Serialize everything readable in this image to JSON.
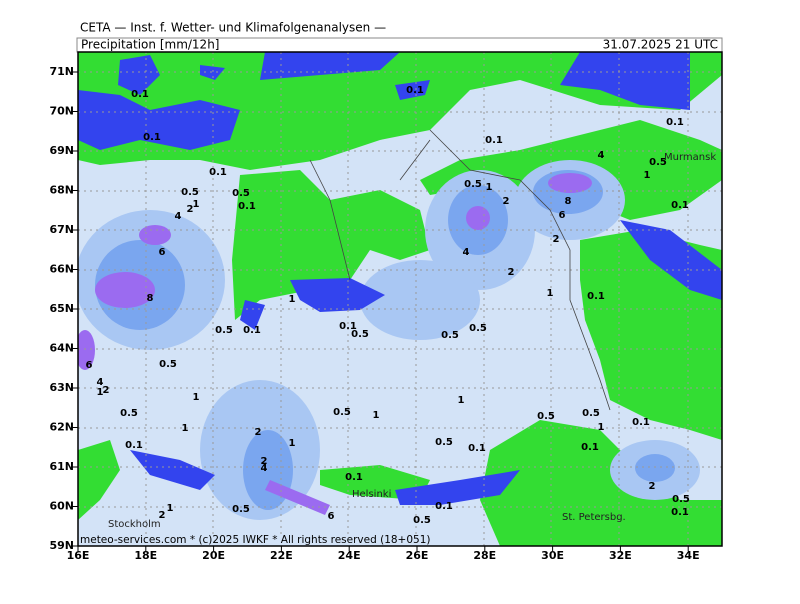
{
  "header": {
    "source": "CETA — Inst. f. Wetter- und Klimafolgenanalysen —",
    "title": "Precipitation [mm/12h]",
    "date": "31.07.2025 21 UTC"
  },
  "map": {
    "lat_labels": [
      "71N",
      "70N",
      "69N",
      "68N",
      "67N",
      "66N",
      "65N",
      "64N",
      "63N",
      "62N",
      "61N",
      "60N",
      "59N"
    ],
    "lon_labels": [
      "16E",
      "18E",
      "20E",
      "22E",
      "24E",
      "26E",
      "28E",
      "30E",
      "32E",
      "34E"
    ],
    "cities": [
      "Murmansk",
      "Helsinki",
      "St. Petersbg.",
      "Stockholm"
    ],
    "contour_labels": [
      "0.1",
      "0.1",
      "0.1",
      "0.5",
      "0.5",
      "1",
      "2",
      "4",
      "0.1",
      "6",
      "8",
      "0.1",
      "0.1",
      "0.5",
      "1",
      "2",
      "4",
      "8",
      "6",
      "2",
      "4",
      "0.5",
      "1",
      "0.1",
      "0.1",
      "2",
      "1",
      "0.1",
      "1",
      "0.5",
      "0.1",
      "0.1",
      "0.5",
      "0.5",
      "0.5",
      "0.5",
      "6",
      "4",
      "2",
      "1",
      "1",
      "0.5",
      "0.5",
      "1",
      "1",
      "0.5",
      "0.5",
      "1",
      "0.1",
      "1",
      "2",
      "1",
      "0.1",
      "0.5",
      "0.1",
      "0.1",
      "2",
      "4",
      "0.1",
      "2",
      "0.5",
      "0.1",
      "1",
      "2",
      "0.5",
      "6",
      "0.1",
      "0.5"
    ]
  },
  "footer": "meteo-services.com * (c)2025 IWKF * All rights reserved (18+051)"
}
